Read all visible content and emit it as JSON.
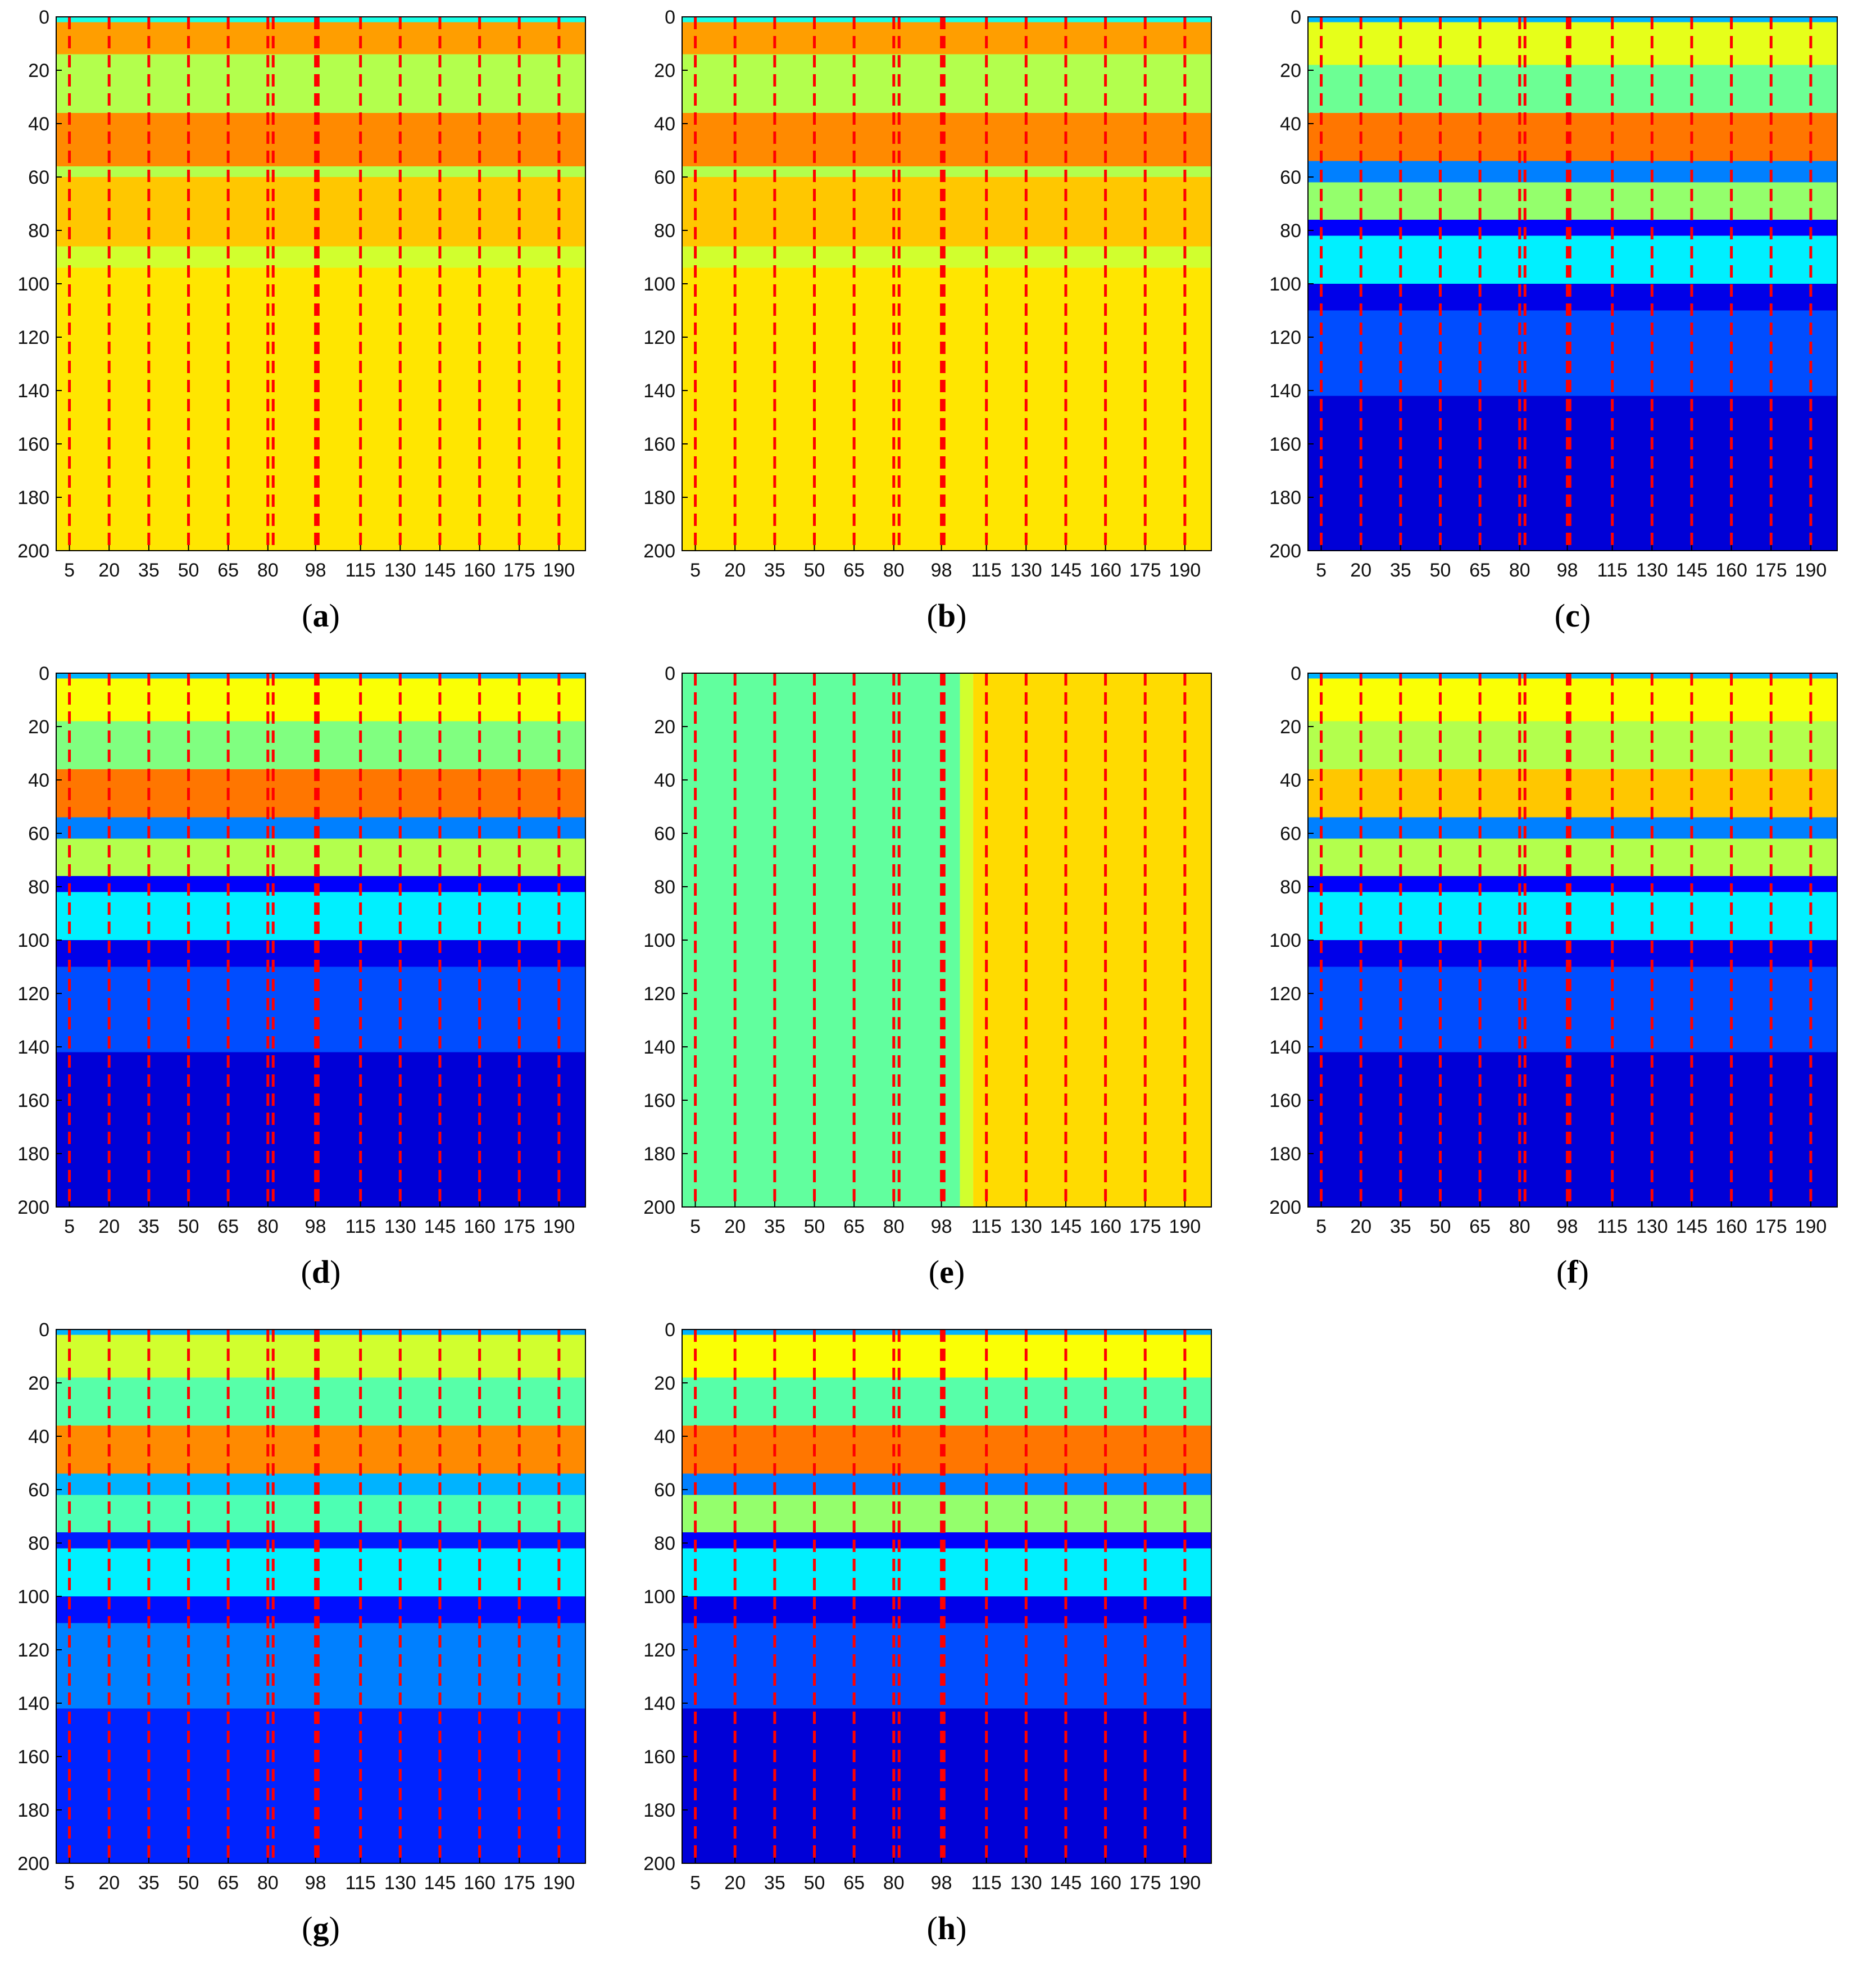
{
  "figure": {
    "colormap": [
      "#00008f",
      "#0000ff",
      "#0080ff",
      "#00ffff",
      "#80ff80",
      "#ffff00",
      "#ff8000",
      "#ff0000",
      "#800000"
    ],
    "marker_color": "#ff0000"
  },
  "chart_data": [
    {
      "type": "heatmap",
      "label": "a",
      "title": "",
      "xlabel": "",
      "ylabel": "",
      "xlim": [
        0,
        200
      ],
      "ylim": [
        200,
        0
      ],
      "x_ticks": [
        5,
        20,
        35,
        50,
        65,
        80,
        98,
        115,
        130,
        145,
        160,
        175,
        190
      ],
      "y_ticks": [
        0,
        20,
        40,
        60,
        80,
        100,
        120,
        140,
        160,
        180,
        200
      ],
      "boundary_lines": [
        5,
        20,
        35,
        50,
        65,
        80,
        82,
        98,
        99,
        115,
        130,
        145,
        160,
        175,
        190
      ],
      "row_profile": [
        {
          "from": 0,
          "to": 2,
          "value": 0.4
        },
        {
          "from": 2,
          "to": 14,
          "value": 0.72
        },
        {
          "from": 14,
          "to": 36,
          "value": 0.55
        },
        {
          "from": 36,
          "to": 56,
          "value": 0.74
        },
        {
          "from": 56,
          "to": 60,
          "value": 0.55
        },
        {
          "from": 60,
          "to": 86,
          "value": 0.68
        },
        {
          "from": 86,
          "to": 94,
          "value": 0.58
        },
        {
          "from": 94,
          "to": 200,
          "value": 0.65
        }
      ]
    },
    {
      "type": "heatmap",
      "label": "b",
      "title": "",
      "xlabel": "",
      "ylabel": "",
      "xlim": [
        0,
        200
      ],
      "ylim": [
        200,
        0
      ],
      "x_ticks": [
        5,
        20,
        35,
        50,
        65,
        80,
        98,
        115,
        130,
        145,
        160,
        175,
        190
      ],
      "y_ticks": [
        0,
        20,
        40,
        60,
        80,
        100,
        120,
        140,
        160,
        180,
        200
      ],
      "boundary_lines": [
        5,
        20,
        35,
        50,
        65,
        80,
        82,
        98,
        99,
        115,
        130,
        145,
        160,
        175,
        190
      ],
      "row_profile": [
        {
          "from": 0,
          "to": 2,
          "value": 0.4
        },
        {
          "from": 2,
          "to": 14,
          "value": 0.72
        },
        {
          "from": 14,
          "to": 36,
          "value": 0.55
        },
        {
          "from": 36,
          "to": 56,
          "value": 0.74
        },
        {
          "from": 56,
          "to": 60,
          "value": 0.55
        },
        {
          "from": 60,
          "to": 86,
          "value": 0.68
        },
        {
          "from": 86,
          "to": 94,
          "value": 0.58
        },
        {
          "from": 94,
          "to": 200,
          "value": 0.65
        }
      ]
    },
    {
      "type": "heatmap",
      "label": "c",
      "title": "",
      "xlabel": "",
      "ylabel": "",
      "xlim": [
        0,
        200
      ],
      "ylim": [
        200,
        0
      ],
      "x_ticks": [
        5,
        20,
        35,
        50,
        65,
        80,
        98,
        115,
        130,
        145,
        160,
        175,
        190
      ],
      "y_ticks": [
        0,
        20,
        40,
        60,
        80,
        100,
        120,
        140,
        160,
        180,
        200
      ],
      "boundary_lines": [
        5,
        20,
        35,
        50,
        65,
        80,
        82,
        98,
        99,
        115,
        130,
        145,
        160,
        175,
        190
      ],
      "row_profile": [
        {
          "from": 0,
          "to": 2,
          "value": 0.3
        },
        {
          "from": 2,
          "to": 18,
          "value": 0.6
        },
        {
          "from": 18,
          "to": 36,
          "value": 0.48
        },
        {
          "from": 36,
          "to": 54,
          "value": 0.76
        },
        {
          "from": 54,
          "to": 62,
          "value": 0.25
        },
        {
          "from": 62,
          "to": 76,
          "value": 0.52
        },
        {
          "from": 76,
          "to": 82,
          "value": 0.12
        },
        {
          "from": 82,
          "to": 100,
          "value": 0.36
        },
        {
          "from": 100,
          "to": 110,
          "value": 0.1
        },
        {
          "from": 110,
          "to": 142,
          "value": 0.2
        },
        {
          "from": 142,
          "to": 200,
          "value": 0.08
        }
      ]
    },
    {
      "type": "heatmap",
      "label": "d",
      "title": "",
      "xlabel": "",
      "ylabel": "",
      "xlim": [
        0,
        200
      ],
      "ylim": [
        200,
        0
      ],
      "x_ticks": [
        5,
        20,
        35,
        50,
        65,
        80,
        98,
        115,
        130,
        145,
        160,
        175,
        190
      ],
      "y_ticks": [
        0,
        20,
        40,
        60,
        80,
        100,
        120,
        140,
        160,
        180,
        200
      ],
      "boundary_lines": [
        5,
        20,
        35,
        50,
        65,
        80,
        82,
        98,
        99,
        115,
        130,
        145,
        160,
        175,
        190
      ],
      "row_profile": [
        {
          "from": 0,
          "to": 2,
          "value": 0.3
        },
        {
          "from": 2,
          "to": 18,
          "value": 0.62
        },
        {
          "from": 18,
          "to": 36,
          "value": 0.5
        },
        {
          "from": 36,
          "to": 54,
          "value": 0.76
        },
        {
          "from": 54,
          "to": 62,
          "value": 0.25
        },
        {
          "from": 62,
          "to": 76,
          "value": 0.55
        },
        {
          "from": 76,
          "to": 82,
          "value": 0.12
        },
        {
          "from": 82,
          "to": 100,
          "value": 0.36
        },
        {
          "from": 100,
          "to": 110,
          "value": 0.1
        },
        {
          "from": 110,
          "to": 142,
          "value": 0.2
        },
        {
          "from": 142,
          "to": 200,
          "value": 0.08
        }
      ]
    },
    {
      "type": "heatmap",
      "label": "e",
      "title": "",
      "xlabel": "",
      "ylabel": "",
      "xlim": [
        0,
        200
      ],
      "ylim": [
        200,
        0
      ],
      "x_ticks": [
        5,
        20,
        35,
        50,
        65,
        80,
        98,
        115,
        130,
        145,
        160,
        175,
        190
      ],
      "y_ticks": [
        0,
        20,
        40,
        60,
        80,
        100,
        120,
        140,
        160,
        180,
        200
      ],
      "boundary_lines": [
        5,
        20,
        35,
        50,
        65,
        80,
        82,
        98,
        99,
        115,
        130,
        145,
        160,
        175,
        190
      ],
      "row_profile": [
        {
          "from": 0,
          "to": 2,
          "value": 0.55
        },
        {
          "from": 2,
          "to": 200,
          "value": 0.55
        }
      ],
      "column_profile": [
        {
          "from": 0,
          "to": 105,
          "value": 0.47
        },
        {
          "from": 105,
          "to": 110,
          "value": 0.58
        },
        {
          "from": 110,
          "to": 200,
          "value": 0.66
        }
      ]
    },
    {
      "type": "heatmap",
      "label": "f",
      "title": "",
      "xlabel": "",
      "ylabel": "",
      "xlim": [
        0,
        200
      ],
      "ylim": [
        200,
        0
      ],
      "x_ticks": [
        5,
        20,
        35,
        50,
        65,
        80,
        98,
        115,
        130,
        145,
        160,
        175,
        190
      ],
      "y_ticks": [
        0,
        20,
        40,
        60,
        80,
        100,
        120,
        140,
        160,
        180,
        200
      ],
      "boundary_lines": [
        5,
        20,
        35,
        50,
        65,
        80,
        82,
        98,
        99,
        115,
        130,
        145,
        160,
        175,
        190
      ],
      "row_profile": [
        {
          "from": 0,
          "to": 2,
          "value": 0.3
        },
        {
          "from": 2,
          "to": 18,
          "value": 0.62
        },
        {
          "from": 18,
          "to": 36,
          "value": 0.55
        },
        {
          "from": 36,
          "to": 54,
          "value": 0.68
        },
        {
          "from": 54,
          "to": 62,
          "value": 0.25
        },
        {
          "from": 62,
          "to": 76,
          "value": 0.55
        },
        {
          "from": 76,
          "to": 82,
          "value": 0.12
        },
        {
          "from": 82,
          "to": 100,
          "value": 0.36
        },
        {
          "from": 100,
          "to": 110,
          "value": 0.1
        },
        {
          "from": 110,
          "to": 142,
          "value": 0.2
        },
        {
          "from": 142,
          "to": 200,
          "value": 0.08
        }
      ]
    },
    {
      "type": "heatmap",
      "label": "g",
      "title": "",
      "xlabel": "",
      "ylabel": "",
      "xlim": [
        0,
        200
      ],
      "ylim": [
        200,
        0
      ],
      "x_ticks": [
        5,
        20,
        35,
        50,
        65,
        80,
        98,
        115,
        130,
        145,
        160,
        175,
        190
      ],
      "y_ticks": [
        0,
        20,
        40,
        60,
        80,
        100,
        120,
        140,
        160,
        180,
        200
      ],
      "boundary_lines": [
        5,
        20,
        35,
        50,
        65,
        80,
        82,
        98,
        99,
        115,
        130,
        145,
        160,
        175,
        190
      ],
      "row_profile": [
        {
          "from": 0,
          "to": 2,
          "value": 0.3
        },
        {
          "from": 2,
          "to": 18,
          "value": 0.58
        },
        {
          "from": 18,
          "to": 36,
          "value": 0.46
        },
        {
          "from": 36,
          "to": 54,
          "value": 0.74
        },
        {
          "from": 54,
          "to": 62,
          "value": 0.3
        },
        {
          "from": 62,
          "to": 76,
          "value": 0.45
        },
        {
          "from": 76,
          "to": 82,
          "value": 0.15
        },
        {
          "from": 82,
          "to": 100,
          "value": 0.36
        },
        {
          "from": 100,
          "to": 110,
          "value": 0.14
        },
        {
          "from": 110,
          "to": 142,
          "value": 0.25
        },
        {
          "from": 142,
          "to": 200,
          "value": 0.16
        }
      ]
    },
    {
      "type": "heatmap",
      "label": "h",
      "title": "",
      "xlabel": "",
      "ylabel": "",
      "xlim": [
        0,
        200
      ],
      "ylim": [
        200,
        0
      ],
      "x_ticks": [
        5,
        20,
        35,
        50,
        65,
        80,
        98,
        115,
        130,
        145,
        160,
        175,
        190
      ],
      "y_ticks": [
        0,
        20,
        40,
        60,
        80,
        100,
        120,
        140,
        160,
        180,
        200
      ],
      "boundary_lines": [
        5,
        20,
        35,
        50,
        65,
        80,
        82,
        98,
        99,
        115,
        130,
        145,
        160,
        175,
        190
      ],
      "row_profile": [
        {
          "from": 0,
          "to": 2,
          "value": 0.3
        },
        {
          "from": 2,
          "to": 18,
          "value": 0.62
        },
        {
          "from": 18,
          "to": 36,
          "value": 0.46
        },
        {
          "from": 36,
          "to": 54,
          "value": 0.76
        },
        {
          "from": 54,
          "to": 62,
          "value": 0.25
        },
        {
          "from": 62,
          "to": 76,
          "value": 0.52
        },
        {
          "from": 76,
          "to": 82,
          "value": 0.12
        },
        {
          "from": 82,
          "to": 100,
          "value": 0.36
        },
        {
          "from": 100,
          "to": 110,
          "value": 0.1
        },
        {
          "from": 110,
          "to": 142,
          "value": 0.2
        },
        {
          "from": 142,
          "to": 200,
          "value": 0.08
        }
      ]
    }
  ]
}
